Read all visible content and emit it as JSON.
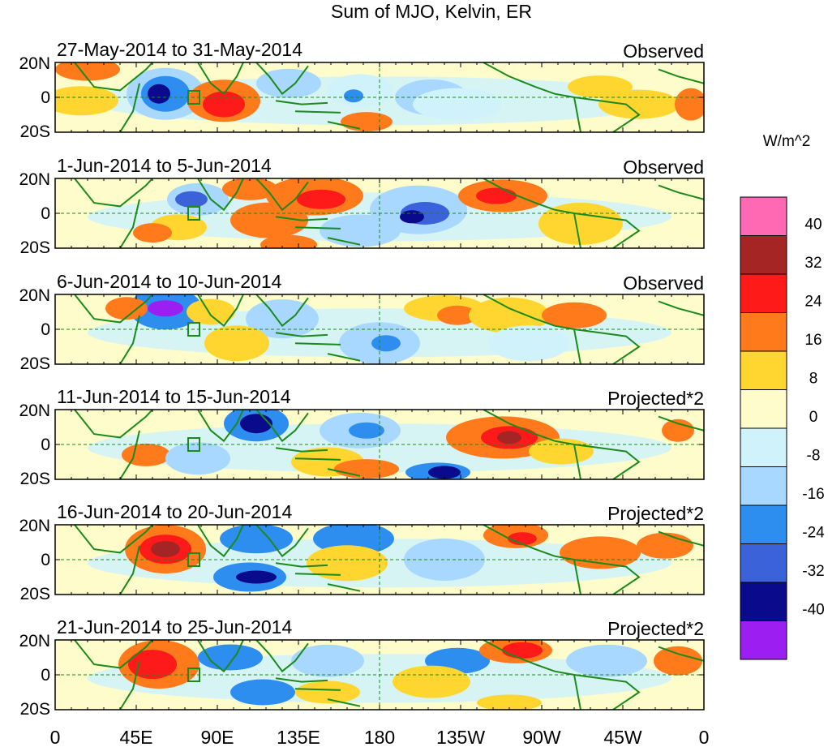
{
  "title": "Sum of MJO, Kelvin, ER",
  "units_label": "W/m^2",
  "lat_labels": [
    "20N",
    "0",
    "20S"
  ],
  "lon_labels": [
    "0",
    "45E",
    "90E",
    "135E",
    "180",
    "135W",
    "90W",
    "45W",
    "0"
  ],
  "panels": [
    {
      "date_range": "27-May-2014 to 31-May-2014",
      "mode": "Observed"
    },
    {
      "date_range": "1-Jun-2014 to 5-Jun-2014",
      "mode": "Observed"
    },
    {
      "date_range": "6-Jun-2014 to 10-Jun-2014",
      "mode": "Observed"
    },
    {
      "date_range": "11-Jun-2014 to 15-Jun-2014",
      "mode": "Projected*2"
    },
    {
      "date_range": "16-Jun-2014 to 20-Jun-2014",
      "mode": "Projected*2"
    },
    {
      "date_range": "21-Jun-2014 to 25-Jun-2014",
      "mode": "Projected*2"
    }
  ],
  "colorbar": {
    "labels": [
      "40",
      "32",
      "24",
      "16",
      "8",
      "0",
      "-8",
      "-16",
      "-24",
      "-32",
      "-40"
    ],
    "colors": [
      "#ff69b4",
      "#a52525",
      "#ff1a1a",
      "#ff7a1a",
      "#ffd630",
      "#fffccc",
      "#d0f2fb",
      "#a8d8ff",
      "#2e8ef0",
      "#3b62d8",
      "#0a0a8c",
      "#9a1ff0"
    ]
  },
  "map_colors": {
    "land_outline": "#1a8a1a",
    "reference_line": "#1a8a1a",
    "background": "#fffccc"
  }
}
